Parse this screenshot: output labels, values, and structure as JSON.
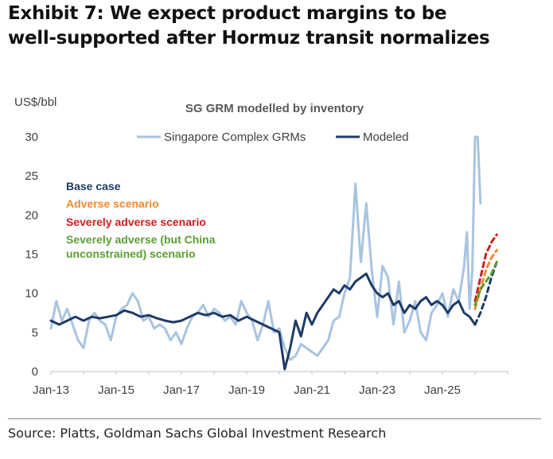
{
  "exhibit": {
    "title_line1": "Exhibit 7: We expect product margins to be",
    "title_line2": "well-supported after Hormuz transit normalizes"
  },
  "source": "Source: Platts, Goldman Sachs Global Investment Research",
  "colors": {
    "observed": "#a8c4e0",
    "modeled": "#1f3b66",
    "base_case": "#1f3b66",
    "adverse": "#f08a2e",
    "severely_adverse": "#cc1f1f",
    "severely_adverse_china": "#5a9e32",
    "axis_text": "#404040"
  },
  "chart_data": {
    "type": "line",
    "title": "SG GRM modelled by inventory",
    "ylabel": "US$/bbl",
    "xlabel": "",
    "ylim": [
      0,
      30
    ],
    "yticks": [
      0,
      5,
      10,
      15,
      20,
      25,
      30
    ],
    "xlim": [
      "2013-01",
      "2027-01"
    ],
    "xticks": [
      {
        "label": "Jan-13",
        "x": "2013-01"
      },
      {
        "label": "Jan-15",
        "x": "2015-01"
      },
      {
        "label": "Jan-17",
        "x": "2017-01"
      },
      {
        "label": "Jan-19",
        "x": "2019-01"
      },
      {
        "label": "Jan-21",
        "x": "2021-01"
      },
      {
        "label": "Jan-23",
        "x": "2023-01"
      },
      {
        "label": "Jan-25",
        "x": "2025-01"
      }
    ],
    "legend": [
      "Singapore Complex GRMs",
      "Modeled"
    ],
    "legend_position": "top",
    "scenario_labels": [
      {
        "text": "Base case",
        "color": "#1f3b66"
      },
      {
        "text": "Adverse scenario",
        "color": "#f08a2e"
      },
      {
        "text": "Severely adverse scenario",
        "color": "#cc1f1f"
      },
      {
        "text": "Severely adverse (but China",
        "color": "#5a9e32"
      },
      {
        "text": "unconstrained) scenario",
        "color": "#5a9e32"
      }
    ],
    "series": [
      {
        "name": "Singapore Complex GRMs",
        "style": "solid",
        "color": "#a8c4e0",
        "points": [
          [
            "2013-01",
            5.5
          ],
          [
            "2013-03",
            9.0
          ],
          [
            "2013-05",
            6.5
          ],
          [
            "2013-07",
            8.0
          ],
          [
            "2013-09",
            6.0
          ],
          [
            "2013-11",
            4.0
          ],
          [
            "2014-01",
            3.0
          ],
          [
            "2014-03",
            6.5
          ],
          [
            "2014-05",
            7.5
          ],
          [
            "2014-07",
            6.5
          ],
          [
            "2014-09",
            6.0
          ],
          [
            "2014-11",
            4.0
          ],
          [
            "2015-01",
            7.0
          ],
          [
            "2015-03",
            8.0
          ],
          [
            "2015-05",
            8.5
          ],
          [
            "2015-07",
            10.0
          ],
          [
            "2015-09",
            9.0
          ],
          [
            "2015-11",
            6.5
          ],
          [
            "2016-01",
            7.0
          ],
          [
            "2016-03",
            5.5
          ],
          [
            "2016-05",
            6.0
          ],
          [
            "2016-07",
            5.5
          ],
          [
            "2016-09",
            4.0
          ],
          [
            "2016-11",
            5.0
          ],
          [
            "2017-01",
            3.5
          ],
          [
            "2017-03",
            5.5
          ],
          [
            "2017-05",
            7.0
          ],
          [
            "2017-07",
            7.5
          ],
          [
            "2017-09",
            8.5
          ],
          [
            "2017-11",
            7.0
          ],
          [
            "2018-01",
            8.0
          ],
          [
            "2018-03",
            7.5
          ],
          [
            "2018-05",
            6.5
          ],
          [
            "2018-07",
            7.0
          ],
          [
            "2018-09",
            6.0
          ],
          [
            "2018-11",
            9.0
          ],
          [
            "2019-01",
            7.5
          ],
          [
            "2019-03",
            6.5
          ],
          [
            "2019-05",
            4.0
          ],
          [
            "2019-07",
            6.0
          ],
          [
            "2019-09",
            9.0
          ],
          [
            "2019-11",
            5.0
          ],
          [
            "2020-01",
            5.5
          ],
          [
            "2020-03",
            3.0
          ],
          [
            "2020-05",
            1.5
          ],
          [
            "2020-07",
            2.0
          ],
          [
            "2020-09",
            3.5
          ],
          [
            "2020-11",
            3.0
          ],
          [
            "2021-01",
            2.5
          ],
          [
            "2021-03",
            2.0
          ],
          [
            "2021-05",
            3.0
          ],
          [
            "2021-07",
            4.0
          ],
          [
            "2021-09",
            6.5
          ],
          [
            "2021-11",
            7.0
          ],
          [
            "2022-01",
            10.0
          ],
          [
            "2022-03",
            12.0
          ],
          [
            "2022-05",
            24.0
          ],
          [
            "2022-07",
            14.0
          ],
          [
            "2022-09",
            21.5
          ],
          [
            "2022-11",
            13.0
          ],
          [
            "2023-01",
            7.0
          ],
          [
            "2023-03",
            13.5
          ],
          [
            "2023-05",
            12.0
          ],
          [
            "2023-07",
            6.0
          ],
          [
            "2023-09",
            11.5
          ],
          [
            "2023-11",
            5.0
          ],
          [
            "2024-01",
            6.5
          ],
          [
            "2024-03",
            9.0
          ],
          [
            "2024-05",
            5.0
          ],
          [
            "2024-07",
            4.0
          ],
          [
            "2024-09",
            7.5
          ],
          [
            "2024-11",
            8.5
          ],
          [
            "2025-01",
            10.0
          ],
          [
            "2025-03",
            7.0
          ],
          [
            "2025-05",
            10.5
          ],
          [
            "2025-07",
            9.0
          ],
          [
            "2025-09",
            13.5
          ],
          [
            "2025-10",
            17.8
          ],
          [
            "2025-11",
            8.0
          ],
          [
            "2025-12",
            13.0
          ],
          [
            "2026-01",
            30.0
          ],
          [
            "2026-02",
            30.0
          ],
          [
            "2026-03",
            21.5
          ]
        ]
      },
      {
        "name": "Modeled",
        "style": "solid",
        "color": "#1f3b66",
        "points": [
          [
            "2013-01",
            6.5
          ],
          [
            "2013-04",
            6.0
          ],
          [
            "2013-07",
            6.5
          ],
          [
            "2013-10",
            7.0
          ],
          [
            "2014-01",
            6.5
          ],
          [
            "2014-04",
            7.0
          ],
          [
            "2014-07",
            6.8
          ],
          [
            "2014-10",
            7.0
          ],
          [
            "2015-01",
            7.2
          ],
          [
            "2015-04",
            7.8
          ],
          [
            "2015-07",
            7.5
          ],
          [
            "2015-10",
            7.0
          ],
          [
            "2016-01",
            7.2
          ],
          [
            "2016-04",
            6.8
          ],
          [
            "2016-07",
            6.5
          ],
          [
            "2016-10",
            6.3
          ],
          [
            "2017-01",
            6.5
          ],
          [
            "2017-04",
            7.0
          ],
          [
            "2017-07",
            7.5
          ],
          [
            "2017-10",
            7.2
          ],
          [
            "2018-01",
            7.5
          ],
          [
            "2018-04",
            7.0
          ],
          [
            "2018-07",
            7.2
          ],
          [
            "2018-10",
            6.5
          ],
          [
            "2019-01",
            7.0
          ],
          [
            "2019-04",
            6.5
          ],
          [
            "2019-07",
            6.0
          ],
          [
            "2019-10",
            5.5
          ],
          [
            "2020-01",
            5.0
          ],
          [
            "2020-03",
            0.3
          ],
          [
            "2020-05",
            3.0
          ],
          [
            "2020-07",
            6.5
          ],
          [
            "2020-09",
            4.5
          ],
          [
            "2020-11",
            7.5
          ],
          [
            "2021-01",
            6.0
          ],
          [
            "2021-03",
            7.5
          ],
          [
            "2021-05",
            8.5
          ],
          [
            "2021-07",
            9.5
          ],
          [
            "2021-09",
            10.5
          ],
          [
            "2021-11",
            10.0
          ],
          [
            "2022-01",
            11.0
          ],
          [
            "2022-03",
            10.5
          ],
          [
            "2022-05",
            11.5
          ],
          [
            "2022-07",
            12.0
          ],
          [
            "2022-09",
            12.5
          ],
          [
            "2022-11",
            11.0
          ],
          [
            "2023-01",
            10.0
          ],
          [
            "2023-03",
            9.5
          ],
          [
            "2023-05",
            10.0
          ],
          [
            "2023-07",
            8.5
          ],
          [
            "2023-09",
            9.0
          ],
          [
            "2023-11",
            7.5
          ],
          [
            "2024-01",
            8.5
          ],
          [
            "2024-03",
            8.0
          ],
          [
            "2024-05",
            9.0
          ],
          [
            "2024-07",
            9.5
          ],
          [
            "2024-09",
            8.5
          ],
          [
            "2024-11",
            9.0
          ],
          [
            "2025-01",
            8.5
          ],
          [
            "2025-03",
            7.5
          ],
          [
            "2025-05",
            8.5
          ],
          [
            "2025-07",
            9.0
          ],
          [
            "2025-09",
            7.5
          ],
          [
            "2025-11",
            7.0
          ],
          [
            "2026-01",
            6.0
          ]
        ]
      },
      {
        "name": "Base case",
        "style": "dashed",
        "color": "#1f3b66",
        "points": [
          [
            "2026-01",
            6.0
          ],
          [
            "2026-03",
            7.5
          ],
          [
            "2026-05",
            9.5
          ],
          [
            "2026-07",
            12.0
          ],
          [
            "2026-09",
            14.0
          ]
        ]
      },
      {
        "name": "Adverse scenario",
        "style": "dashed",
        "color": "#f08a2e",
        "points": [
          [
            "2026-01",
            8.0
          ],
          [
            "2026-03",
            10.5
          ],
          [
            "2026-05",
            13.0
          ],
          [
            "2026-07",
            14.5
          ],
          [
            "2026-09",
            15.5
          ]
        ]
      },
      {
        "name": "Severely adverse scenario",
        "style": "dashed",
        "color": "#cc1f1f",
        "points": [
          [
            "2026-01",
            9.0
          ],
          [
            "2026-03",
            12.0
          ],
          [
            "2026-05",
            15.0
          ],
          [
            "2026-07",
            16.5
          ],
          [
            "2026-09",
            17.5
          ]
        ]
      },
      {
        "name": "Severely adverse (but China unconstrained) scenario",
        "style": "dashed",
        "color": "#5a9e32",
        "points": [
          [
            "2026-01",
            8.5
          ],
          [
            "2026-03",
            10.5
          ],
          [
            "2026-05",
            11.5
          ],
          [
            "2026-07",
            12.5
          ],
          [
            "2026-09",
            14.0
          ]
        ]
      }
    ]
  }
}
